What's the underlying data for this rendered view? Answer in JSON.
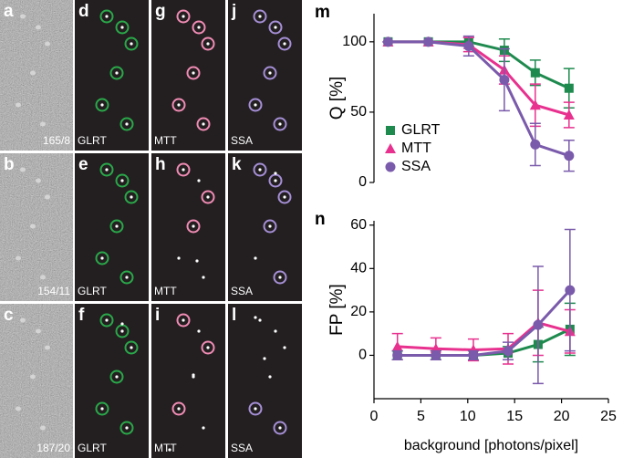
{
  "panels": {
    "labels": [
      "a",
      "b",
      "c",
      "d",
      "e",
      "f",
      "g",
      "h",
      "i",
      "j",
      "k",
      "l"
    ],
    "captions": [
      "165/8",
      "154/11",
      "187/20"
    ],
    "methods": [
      "GLRT",
      "MTT",
      "SSA"
    ]
  },
  "chart_data": [
    {
      "type": "line",
      "label": "m",
      "ylabel": "Q [%]",
      "x": [
        1.5,
        5.8,
        10.1,
        13.9,
        17.2,
        20.8
      ],
      "xlim": [
        0,
        25
      ],
      "ylim": [
        0,
        120
      ],
      "yticks": [
        0,
        50,
        100
      ],
      "legend": "lower-left",
      "series": [
        {
          "name": "GLRT",
          "color": "#1e8a4e",
          "marker": "square",
          "values": [
            100,
            100,
            100,
            94,
            78,
            67
          ],
          "errors": [
            0,
            0,
            3,
            8,
            9,
            14
          ]
        },
        {
          "name": "MTT",
          "color": "#e8318f",
          "marker": "triangle",
          "values": [
            100,
            100,
            98,
            80,
            55,
            48
          ],
          "errors": [
            0,
            0,
            5,
            10,
            15,
            9
          ]
        },
        {
          "name": "SSA",
          "color": "#7a5aab",
          "marker": "circle",
          "values": [
            100,
            100,
            97,
            73,
            27,
            19
          ],
          "errors": [
            0,
            0,
            7,
            22,
            15,
            11
          ]
        }
      ]
    },
    {
      "type": "line",
      "label": "n",
      "ylabel": "FP [%]",
      "xlabel": "background [photons/pixel]",
      "x": [
        2.5,
        6.6,
        10.6,
        14.3,
        17.5,
        20.9
      ],
      "xlim": [
        0,
        25
      ],
      "xticks": [
        0,
        5,
        10,
        15,
        20,
        25
      ],
      "ylim": [
        -20,
        62
      ],
      "yticks": [
        0,
        20,
        40,
        60
      ],
      "series": [
        {
          "name": "GLRT",
          "color": "#1e8a4e",
          "marker": "square",
          "values": [
            0,
            0,
            0,
            1,
            5,
            12
          ],
          "errors": [
            2,
            2,
            2,
            3,
            8,
            12
          ]
        },
        {
          "name": "MTT",
          "color": "#e8318f",
          "marker": "triangle",
          "values": [
            4,
            3,
            2.5,
            3,
            15,
            11
          ],
          "errors": [
            6,
            5,
            5,
            7,
            15,
            10
          ]
        },
        {
          "name": "SSA",
          "color": "#7a5aab",
          "marker": "circle",
          "values": [
            0,
            0,
            0,
            2,
            14,
            30
          ],
          "errors": [
            2,
            2,
            2,
            4,
            27,
            28
          ]
        }
      ]
    }
  ]
}
